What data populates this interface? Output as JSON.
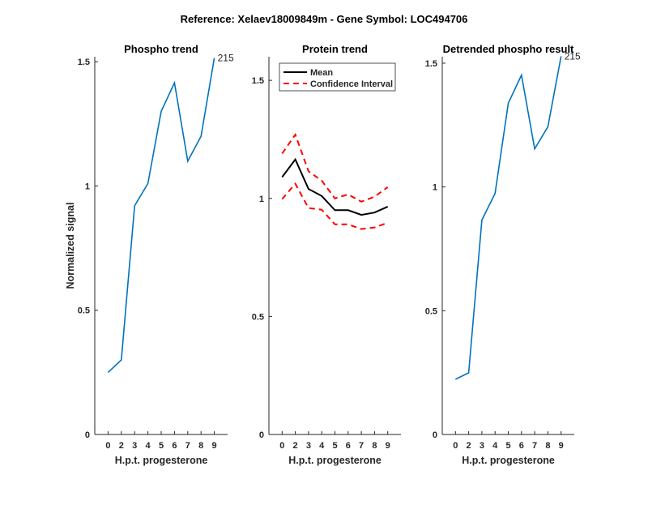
{
  "figure_title": "Reference:  Xelaev18009849m - Gene Symbol:  LOC494706",
  "colors": {
    "phospho": "#0072BD",
    "mean": "#000000",
    "ci": "#FF0000",
    "axis": "#262626"
  },
  "chart_data": [
    {
      "type": "line",
      "title": "Phospho trend",
      "xlabel": "H.p.t. progesterone",
      "ylabel": "Normalized signal",
      "categories": [
        "0",
        "2",
        "3",
        "4",
        "5",
        "6",
        "7",
        "8",
        "9"
      ],
      "ylim": [
        0,
        1.52
      ],
      "yticks": [
        0,
        0.5,
        1,
        1.5
      ],
      "ytick_labels": [
        "0",
        "0.5",
        "1",
        "1.5"
      ],
      "series": [
        {
          "name": "phospho",
          "values": [
            0.25,
            0.3,
            0.92,
            1.01,
            1.3,
            1.415,
            1.1,
            1.2,
            1.515
          ]
        }
      ],
      "annotation": "215"
    },
    {
      "type": "line",
      "title": "Protein trend",
      "xlabel": "H.p.t. progesterone",
      "ylabel": "",
      "categories": [
        "0",
        "2",
        "3",
        "4",
        "5",
        "6",
        "7",
        "8",
        "9"
      ],
      "ylim": [
        0,
        1.6
      ],
      "yticks": [
        0,
        0.5,
        1,
        1.5
      ],
      "ytick_labels": [
        "0",
        "0.5",
        "1",
        "1.5"
      ],
      "legend": {
        "position": "top-left",
        "entries": [
          "Mean",
          "Confidence Interval"
        ]
      },
      "series": [
        {
          "name": "Mean",
          "values": [
            1.09,
            1.165,
            1.04,
            1.01,
            0.95,
            0.95,
            0.93,
            0.94,
            0.965
          ]
        },
        {
          "name": "CI upper",
          "values": [
            1.19,
            1.27,
            1.115,
            1.075,
            1.0,
            1.017,
            0.986,
            1.007,
            1.048
          ]
        },
        {
          "name": "CI lower",
          "values": [
            0.997,
            1.062,
            0.959,
            0.952,
            0.89,
            0.89,
            0.87,
            0.877,
            0.897
          ]
        }
      ]
    },
    {
      "type": "line",
      "title": "Detrended phospho result",
      "xlabel": "H.p.t. progesterone",
      "ylabel": "",
      "categories": [
        "0",
        "2",
        "3",
        "4",
        "5",
        "6",
        "7",
        "8",
        "9"
      ],
      "ylim": [
        0,
        1.526
      ],
      "yticks": [
        0,
        0.5,
        1,
        1.5
      ],
      "ytick_labels": [
        "0",
        "0.5",
        "1",
        "1.5"
      ],
      "series": [
        {
          "name": "detrended",
          "values": [
            0.223,
            0.249,
            0.866,
            0.974,
            1.338,
            1.452,
            1.154,
            1.243,
            1.528
          ]
        }
      ],
      "annotation": "215"
    }
  ]
}
